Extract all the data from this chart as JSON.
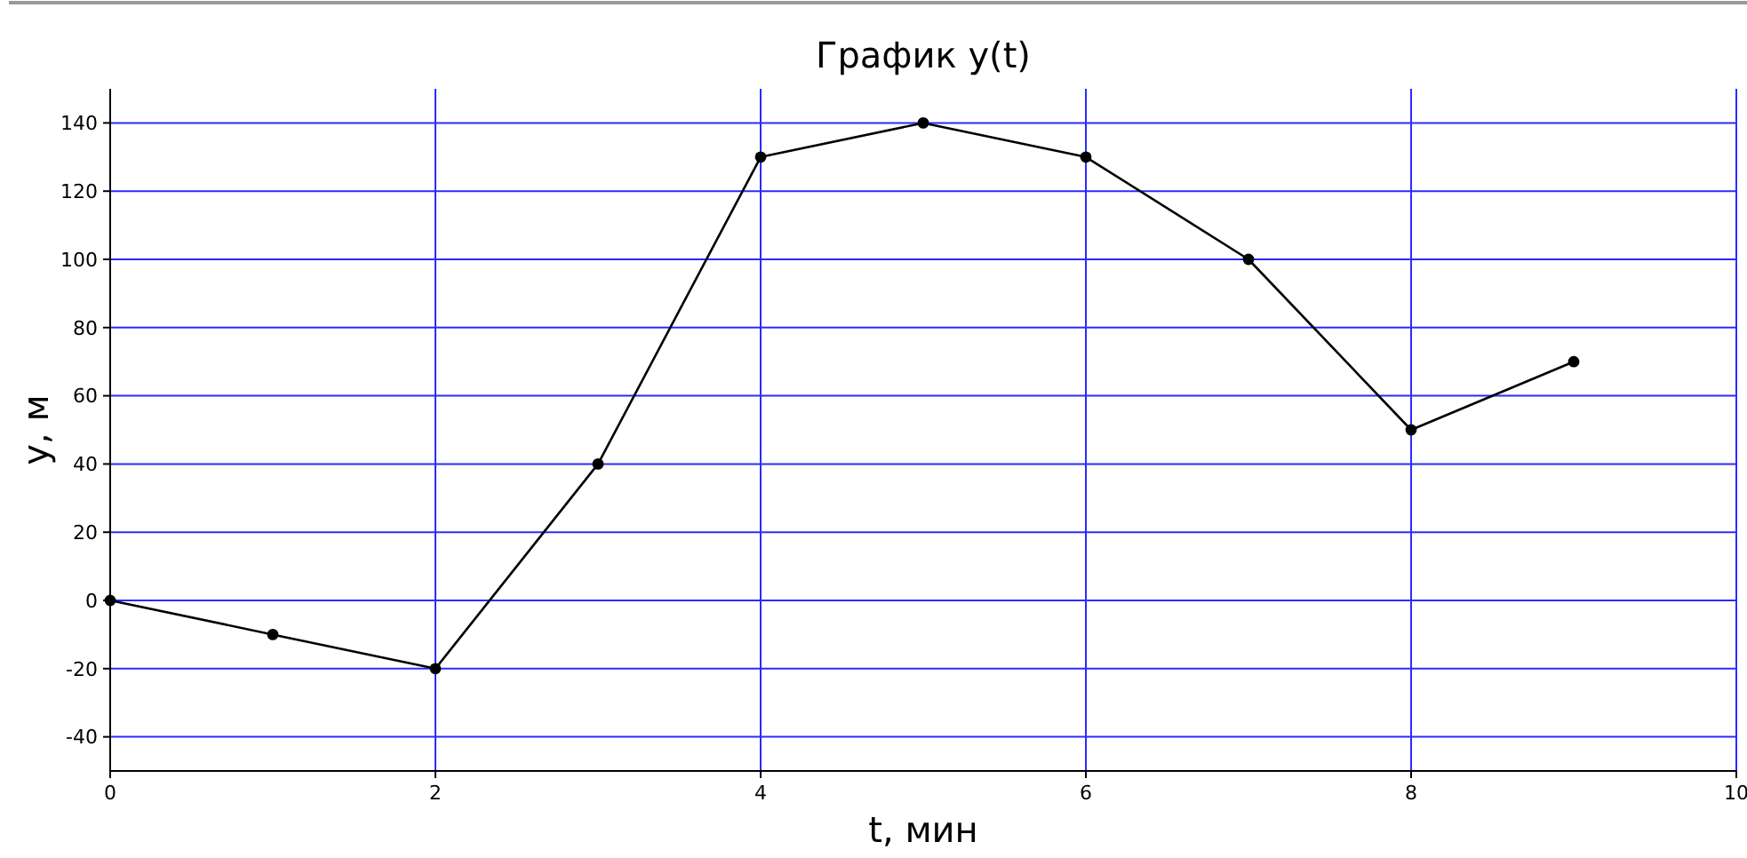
{
  "chart_data": {
    "type": "line",
    "title": "График y(t)",
    "xlabel": "t, мин",
    "ylabel": "y, м",
    "x": [
      0,
      1,
      2,
      3,
      4,
      5,
      6,
      7,
      8,
      9
    ],
    "series": [
      {
        "color": "#000000",
        "values": [
          0,
          -10,
          -20,
          40,
          130,
          140,
          130,
          100,
          50,
          70
        ]
      }
    ],
    "xlim": [
      0,
      10
    ],
    "xticks": [
      0,
      2,
      4,
      6,
      8,
      10
    ],
    "ylim": [
      -50,
      150
    ],
    "yticks": [
      -40,
      -20,
      0,
      20,
      40,
      60,
      80,
      100,
      120,
      140
    ],
    "grid": true,
    "marker": "circle",
    "line_style": "solid"
  }
}
